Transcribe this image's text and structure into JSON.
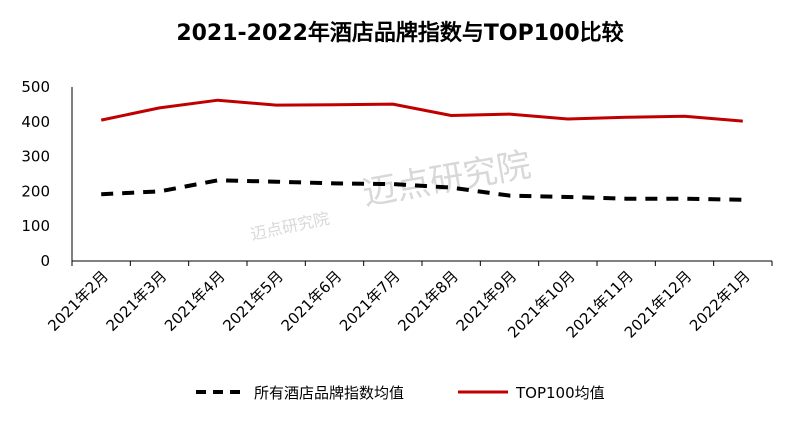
{
  "chart_data": {
    "type": "line",
    "title": "2021-2022年酒店品牌指数与TOP100比较",
    "categories": [
      "2021年2月",
      "2021年3月",
      "2021年4月",
      "2021年5月",
      "2021年6月",
      "2021年7月",
      "2021年8月",
      "2021年9月",
      "2021年10月",
      "2021年11月",
      "2021年12月",
      "2022年1月"
    ],
    "series": [
      {
        "name": "所有酒店品牌指数均值",
        "color": "#000000",
        "style": "dashed",
        "values": [
          192,
          200,
          232,
          228,
          223,
          221,
          211,
          188,
          184,
          179,
          179,
          176
        ]
      },
      {
        "name": "TOP100均值",
        "color": "#c00000",
        "style": "solid",
        "values": [
          405,
          440,
          462,
          448,
          449,
          451,
          418,
          422,
          408,
          413,
          416,
          402
        ]
      }
    ],
    "ylim": [
      0,
      500
    ],
    "yticks": [
      "0",
      "100",
      "200",
      "300",
      "400",
      "500"
    ],
    "grid": false,
    "legend": "bottom"
  },
  "watermark": {
    "text": "迈点研究院"
  }
}
